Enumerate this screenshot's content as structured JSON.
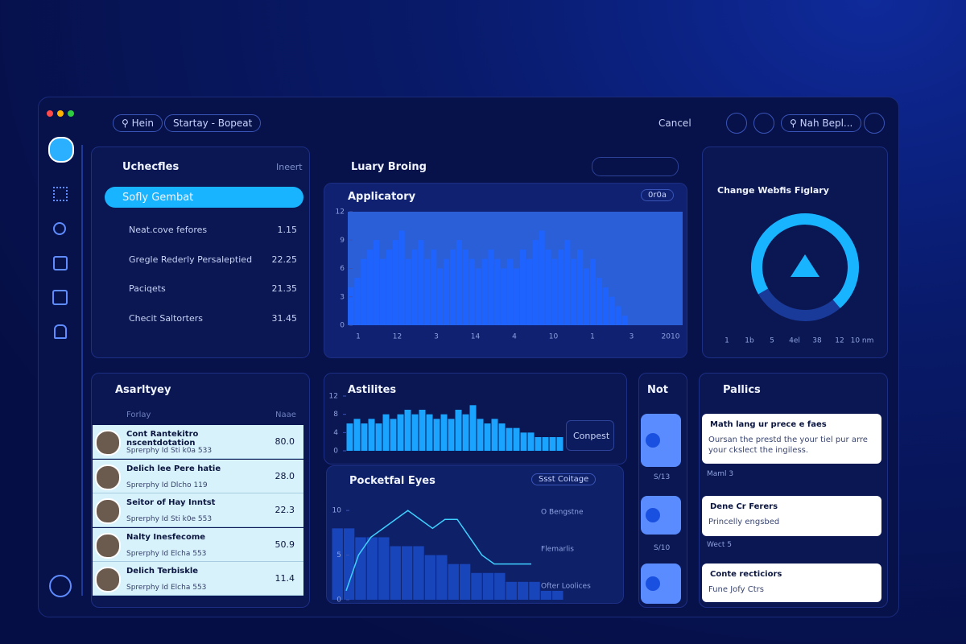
{
  "topbar": {
    "search": "Hein",
    "breadcrumb": "Startay - Bopeat",
    "cancel": "Cancel",
    "search2": "Nah Bepl..."
  },
  "list_panel": {
    "title": "Uchecfles",
    "action": "Ineert",
    "selected": "Sofly Gembat",
    "rows": [
      [
        "Neat.cove fefores",
        "1.15"
      ],
      [
        "Gregle Rederly Persaleptied",
        "22.25"
      ],
      [
        "Paciqets",
        "21.35"
      ],
      [
        "Checit Saltorters",
        "31.45"
      ]
    ]
  },
  "main": {
    "title": "Luary Broing"
  },
  "applicatory": {
    "title": "Applicatory",
    "search": "0r0a",
    "color": "#1f63ff",
    "ylim": [
      0,
      12
    ],
    "yticks": [
      0,
      3,
      6,
      9,
      12
    ],
    "xlabels": [
      "1",
      "12",
      "3",
      "14",
      "4",
      "10",
      "1",
      "3",
      "2010"
    ],
    "values": [
      4,
      5,
      7,
      8,
      9,
      7,
      8,
      9,
      10,
      7,
      8,
      9,
      7,
      8,
      6,
      7,
      8,
      9,
      8,
      7,
      6,
      7,
      8,
      7,
      6,
      7,
      6,
      8,
      7,
      9,
      10,
      8,
      7,
      8,
      9,
      7,
      8,
      6,
      7,
      5,
      4,
      3,
      2,
      1
    ]
  },
  "gauge": {
    "title": "Change Webfis Figlary",
    "value": 72,
    "labels": [
      "1",
      "1b",
      "5",
      "4el",
      "38",
      "12",
      "10 nm"
    ]
  },
  "activity": {
    "title": "Asarltyey",
    "nav": "Forlay",
    "column": "Naae",
    "people": [
      {
        "name": "Cont Rantekitro nscentdotation",
        "sub": "Sprerphy Id Sti k0a 533",
        "value": "80.0"
      },
      {
        "name": "Delich lee Pere hatie",
        "sub": "Sprerphy Id Dlcho 119",
        "value": "28.0"
      },
      {
        "name": "Seitor of Hay Inntst",
        "sub": "Sprerphy Id Sti k0e 553",
        "value": "22.3"
      },
      {
        "name": "Nalty Inesfecome",
        "sub": "Sprerphy Id Elcha 553",
        "value": "50.9"
      },
      {
        "name": "Delich Terbiskle",
        "sub": "Sprerphy Id Elcha 553",
        "value": "11.4"
      }
    ]
  },
  "astilites": {
    "title": "Astilites",
    "button": "Conpest",
    "color": "#1aa3ff",
    "ylim": [
      0,
      12
    ],
    "yticks": [
      0,
      4,
      8,
      12
    ],
    "values": [
      6,
      7,
      6,
      7,
      6,
      8,
      7,
      8,
      9,
      8,
      9,
      8,
      7,
      8,
      7,
      9,
      8,
      10,
      7,
      6,
      7,
      6,
      5,
      5,
      4,
      4,
      3,
      3,
      3,
      3
    ]
  },
  "pocket": {
    "title": "Pocketfal Eyes",
    "filter": "Ssst Coitage",
    "items": [
      "O Bengstne",
      "Flemarlis",
      "Ofter Loolices"
    ],
    "ylim": [
      0,
      12
    ],
    "yticks": [
      0,
      5,
      10
    ],
    "line": [
      1,
      5,
      7,
      8,
      9,
      10,
      9,
      8,
      9,
      9,
      7,
      5,
      4,
      4,
      4,
      4
    ],
    "bars": [
      8,
      8,
      7,
      7,
      7,
      6,
      6,
      6,
      5,
      5,
      4,
      4,
      3,
      3,
      3,
      2,
      2,
      2,
      1,
      1
    ]
  },
  "notcol": {
    "title": "Not",
    "labels": [
      "S/13",
      "S/10"
    ]
  },
  "pallics": {
    "title": "Pallics",
    "cards": [
      {
        "title": "Math lang ur prece e faes",
        "body": "Oursan the prestd the your tiel pur arre your ckslect the ingiless."
      },
      {
        "title": "Dene Cr Ferers",
        "body": "Princelly engsbed"
      },
      {
        "title": "Conte recticiors",
        "body": "Fune Jofy Ctrs"
      }
    ],
    "meta": [
      "Maml 3",
      "Wect 5"
    ]
  }
}
